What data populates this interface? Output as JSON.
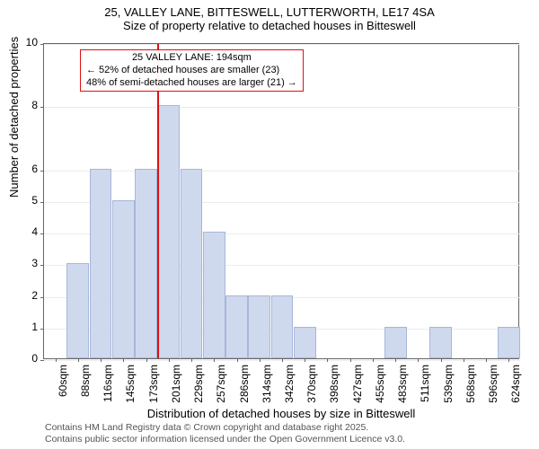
{
  "header": {
    "title": "25, VALLEY LANE, BITTESWELL, LUTTERWORTH, LE17 4SA",
    "subtitle": "Size of property relative to detached houses in Bitteswell"
  },
  "chart": {
    "type": "histogram",
    "ylabel": "Number of detached properties",
    "xlabel": "Distribution of detached houses by size in Bitteswell",
    "ylim": [
      0,
      10
    ],
    "yticks": [
      0,
      1,
      2,
      3,
      4,
      5,
      6,
      8,
      10
    ],
    "categories": [
      "60sqm",
      "88sqm",
      "116sqm",
      "145sqm",
      "173sqm",
      "201sqm",
      "229sqm",
      "257sqm",
      "286sqm",
      "314sqm",
      "342sqm",
      "370sqm",
      "398sqm",
      "427sqm",
      "455sqm",
      "483sqm",
      "511sqm",
      "539sqm",
      "568sqm",
      "596sqm",
      "624sqm"
    ],
    "values": [
      0,
      3,
      6,
      5,
      6,
      8,
      6,
      4,
      2,
      2,
      2,
      1,
      0,
      0,
      0,
      1,
      0,
      1,
      0,
      0,
      1
    ],
    "bar_fill": "#cfd9ee",
    "bar_border": "#a7b6da",
    "vline_color": "#d11",
    "vline_category_index": 5,
    "background_color": "#ffffff",
    "axis_color": "#666666",
    "annotation": {
      "line1": "25 VALLEY LANE: 194sqm",
      "line2": "← 52% of detached houses are smaller (23)",
      "line3": "48% of semi-detached houses are larger (21) →",
      "box_border": "#d11"
    }
  },
  "footer": {
    "line1": "Contains HM Land Registry data © Crown copyright and database right 2025.",
    "line2": "Contains public sector information licensed under the Open Government Licence v3.0."
  }
}
